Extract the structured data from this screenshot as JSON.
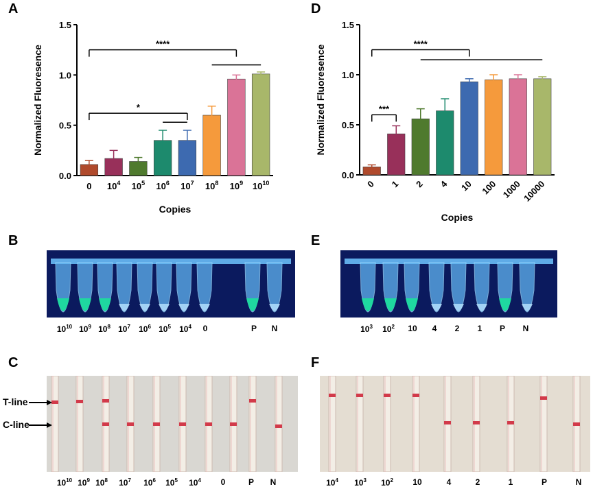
{
  "panels": {
    "A": "A",
    "B": "B",
    "C": "C",
    "D": "D",
    "E": "E",
    "F": "F"
  },
  "chart_data": [
    {
      "type": "bar",
      "id": "A",
      "ylabel": "Normalized Fluoresence",
      "xlabel": "Copies",
      "ylim": [
        0,
        1.5
      ],
      "yticks": [
        "0.0",
        "0.5",
        "1.0",
        "1.5"
      ],
      "yticks_values": [
        0,
        0.5,
        1.0,
        1.5
      ],
      "categories": [
        {
          "base": "0",
          "exp": ""
        },
        {
          "base": "10",
          "exp": "4"
        },
        {
          "base": "10",
          "exp": "5"
        },
        {
          "base": "10",
          "exp": "6"
        },
        {
          "base": "10",
          "exp": "7"
        },
        {
          "base": "10",
          "exp": "8"
        },
        {
          "base": "10",
          "exp": "9"
        },
        {
          "base": "10",
          "exp": "10"
        }
      ],
      "values": [
        0.11,
        0.17,
        0.14,
        0.35,
        0.35,
        0.6,
        0.96,
        1.01
      ],
      "errors": [
        0.04,
        0.08,
        0.04,
        0.1,
        0.1,
        0.09,
        0.04,
        0.02
      ],
      "colors": [
        "#b04a2c",
        "#98305a",
        "#4f7a2e",
        "#1d8a6d",
        "#3d6ab0",
        "#f59a3c",
        "#da7397",
        "#a8b76a"
      ],
      "significance": [
        {
          "from": 0,
          "to": 6,
          "level": 1.25,
          "label": "****"
        },
        {
          "from": 5,
          "to": 7,
          "level": 1.1,
          "label": ""
        },
        {
          "from": 0,
          "to": 4,
          "level": 0.62,
          "label": "*"
        },
        {
          "from": 3,
          "to": 4,
          "level": 0.53,
          "label": ""
        }
      ]
    },
    {
      "type": "bar",
      "id": "D",
      "ylabel": "Normalized Fluoresence",
      "xlabel": "Copies",
      "ylim": [
        0,
        1.5
      ],
      "yticks": [
        "0.0",
        "0.5",
        "1.0",
        "1.5"
      ],
      "yticks_values": [
        0,
        0.5,
        1.0,
        1.5
      ],
      "categories": [
        "0",
        "1",
        "2",
        "4",
        "10",
        "100",
        "1000",
        "10000"
      ],
      "values": [
        0.08,
        0.41,
        0.56,
        0.64,
        0.93,
        0.95,
        0.96,
        0.96
      ],
      "errors": [
        0.02,
        0.08,
        0.1,
        0.12,
        0.03,
        0.05,
        0.04,
        0.02
      ],
      "colors": [
        "#b04a2c",
        "#98305a",
        "#4f7a2e",
        "#1d8a6d",
        "#3d6ab0",
        "#f59a3c",
        "#da7397",
        "#a8b76a"
      ],
      "significance": [
        {
          "from": 0,
          "to": 4,
          "level": 1.25,
          "label": "****"
        },
        {
          "from": 2,
          "to": 7,
          "level": 1.15,
          "label": ""
        },
        {
          "from": 0,
          "to": 1,
          "level": 0.6,
          "label": "***"
        }
      ]
    }
  ],
  "tubes_B": {
    "labels": [
      {
        "base": "10",
        "exp": "10"
      },
      {
        "base": "10",
        "exp": "9"
      },
      {
        "base": "10",
        "exp": "8"
      },
      {
        "base": "10",
        "exp": "7"
      },
      {
        "base": "10",
        "exp": "6"
      },
      {
        "base": "10",
        "exp": "5"
      },
      {
        "base": "10",
        "exp": "4"
      },
      {
        "base": "0",
        "exp": ""
      },
      {
        "base": "P",
        "exp": ""
      },
      {
        "base": "N",
        "exp": ""
      }
    ]
  },
  "tubes_E": {
    "labels": [
      {
        "base": "10",
        "exp": "3"
      },
      {
        "base": "10",
        "exp": "2"
      },
      {
        "base": "10",
        "exp": ""
      },
      {
        "base": "4",
        "exp": ""
      },
      {
        "base": "2",
        "exp": ""
      },
      {
        "base": "1",
        "exp": ""
      },
      {
        "base": "P",
        "exp": ""
      },
      {
        "base": "N",
        "exp": ""
      }
    ]
  },
  "strips_C": {
    "t_line_label": "T-line",
    "c_line_label": "C-line",
    "labels": [
      {
        "base": "10",
        "exp": "10"
      },
      {
        "base": "10",
        "exp": "9"
      },
      {
        "base": "10",
        "exp": "8"
      },
      {
        "base": "10",
        "exp": "7"
      },
      {
        "base": "10",
        "exp": "6"
      },
      {
        "base": "10",
        "exp": "5"
      },
      {
        "base": "10",
        "exp": "4"
      },
      {
        "base": "0",
        "exp": ""
      },
      {
        "base": "P",
        "exp": ""
      },
      {
        "base": "N",
        "exp": ""
      }
    ]
  },
  "strips_F": {
    "labels": [
      {
        "base": "10",
        "exp": "4"
      },
      {
        "base": "10",
        "exp": "3"
      },
      {
        "base": "10",
        "exp": "2"
      },
      {
        "base": "10",
        "exp": ""
      },
      {
        "base": "4",
        "exp": ""
      },
      {
        "base": "2",
        "exp": ""
      },
      {
        "base": "1",
        "exp": ""
      },
      {
        "base": "P",
        "exp": ""
      },
      {
        "base": "N",
        "exp": ""
      }
    ]
  },
  "colors": {
    "tube_panel_bg": "#0b1a5e",
    "strip_panel_bg_C": "#d9d7d2",
    "strip_panel_bg_F": "#e4ddd2",
    "band_red": "#d23a4a",
    "glow_green": "#1fd8a0"
  }
}
